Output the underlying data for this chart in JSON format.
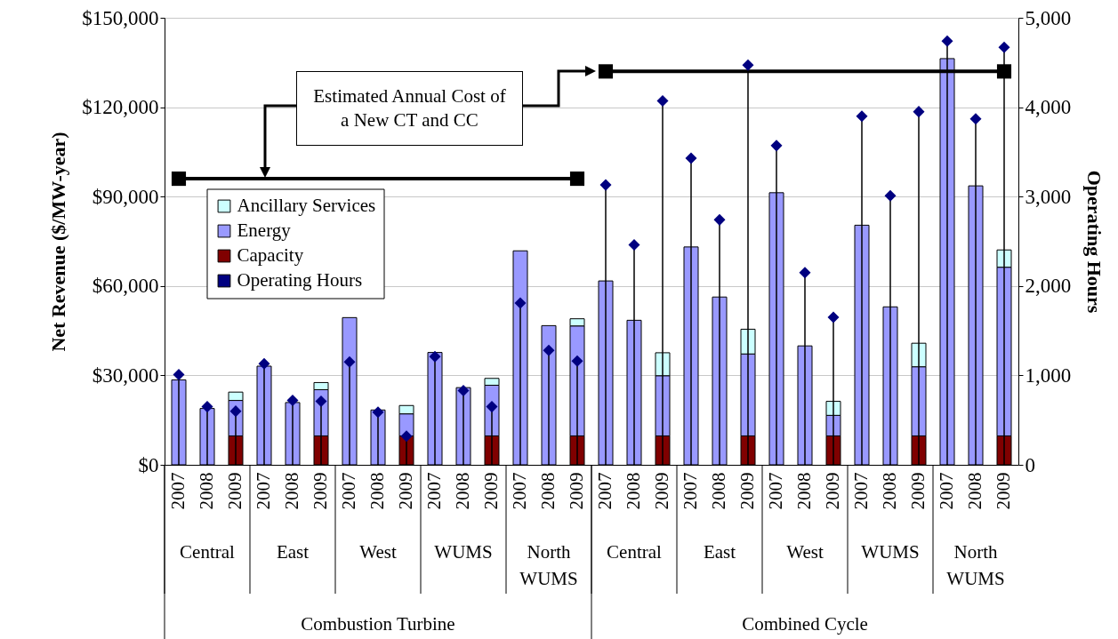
{
  "chart_data": {
    "type": "bar",
    "stacked": true,
    "categories": [
      "2007",
      "2008",
      "2009",
      "2007",
      "2008",
      "2009",
      "2007",
      "2008",
      "2009",
      "2007",
      "2008",
      "2009",
      "2007",
      "2008",
      "2009",
      "2007",
      "2008",
      "2009",
      "2007",
      "2008",
      "2009",
      "2007",
      "2008",
      "2009",
      "2007",
      "2008",
      "2009",
      "2007",
      "2008",
      "2009"
    ],
    "series": [
      {
        "name": "Capacity",
        "color": "#800000",
        "values": [
          null,
          null,
          9700,
          null,
          null,
          9700,
          null,
          null,
          9700,
          null,
          null,
          9700,
          null,
          null,
          9700,
          null,
          null,
          9700,
          null,
          null,
          9700,
          null,
          null,
          9700,
          null,
          null,
          9700,
          null,
          null,
          9700
        ]
      },
      {
        "name": "Energy",
        "color": "#9999ff",
        "values": [
          28500,
          18900,
          11900,
          33100,
          20900,
          15500,
          49400,
          18400,
          7400,
          37700,
          25900,
          17000,
          71800,
          46700,
          36900,
          61700,
          48500,
          20200,
          73100,
          56300,
          27500,
          91300,
          39900,
          6900,
          80400,
          53000,
          23200,
          136300,
          93600,
          56600
        ]
      },
      {
        "name": "Ancillary Services",
        "color": "#ccffff",
        "values": [
          null,
          null,
          2800,
          null,
          null,
          2400,
          null,
          null,
          2800,
          null,
          null,
          2300,
          null,
          null,
          2400,
          null,
          null,
          7700,
          null,
          null,
          8300,
          null,
          null,
          4700,
          null,
          null,
          7900,
          null,
          null,
          5800
        ]
      },
      {
        "name": "Operating Hours",
        "type": "lollipop",
        "axis": "y2",
        "marker": "diamond",
        "color": "#000080",
        "values": [
          1010,
          650,
          600,
          1130,
          720,
          710,
          1150,
          590,
          320,
          1210,
          830,
          650,
          1810,
          1280,
          1160,
          3130,
          2460,
          4070,
          3430,
          2740,
          4470,
          3570,
          2150,
          1650,
          3900,
          3010,
          3950,
          4740,
          3870,
          4670
        ]
      },
      {
        "type": "line",
        "marker": "square",
        "color": "#000000",
        "values": [
          96000,
          null,
          null,
          null,
          null,
          null,
          null,
          null,
          null,
          null,
          null,
          null,
          null,
          null,
          96000,
          null,
          null,
          null,
          null,
          null,
          null,
          null,
          null,
          null,
          null,
          null,
          null,
          null,
          null,
          null
        ]
      },
      {
        "type": "line",
        "marker": "square",
        "color": "#000000",
        "values": [
          null,
          null,
          null,
          null,
          null,
          null,
          null,
          null,
          null,
          null,
          null,
          null,
          null,
          null,
          null,
          132000,
          null,
          null,
          null,
          null,
          null,
          null,
          null,
          null,
          null,
          null,
          null,
          null,
          null,
          132000
        ]
      }
    ],
    "ylabel": "Net Revenue ($/MW-year)",
    "y2label": "Operating Hours",
    "ylim": [
      0,
      150000
    ],
    "yticks": [
      {
        "value": 0,
        "label": "$0"
      },
      {
        "value": 30000,
        "label": "$30,000"
      },
      {
        "value": 60000,
        "label": "$60,000"
      },
      {
        "value": 90000,
        "label": "$90,000"
      },
      {
        "value": 120000,
        "label": "$120,000"
      },
      {
        "value": 150000,
        "label": "$150,000"
      }
    ],
    "y2lim": [
      0,
      5000
    ],
    "y2ticks": [
      0,
      {
        "value": 1000,
        "label": "1,000"
      },
      {
        "value": 2000,
        "label": "2,000"
      },
      {
        "value": 3000,
        "label": "3,000"
      },
      {
        "value": 4000,
        "label": "4,000"
      },
      {
        "value": 5000,
        "label": "5,000"
      }
    ],
    "grid": "y",
    "legend": "left",
    "annotations": [
      "Estimated Annual Cost of a New CT and CC",
      "Central",
      "East",
      "West",
      "WUMS",
      "North WUMS",
      "Central",
      "East",
      "West",
      "WUMS",
      "North WUMS",
      "Combustion Turbine",
      "Combined Cycle"
    ]
  }
}
